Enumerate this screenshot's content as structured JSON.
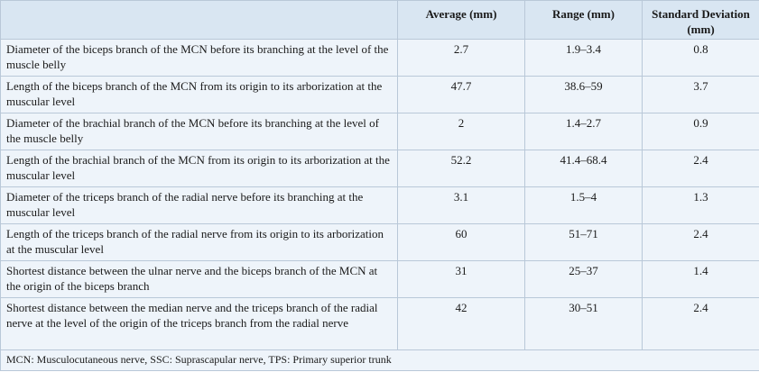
{
  "table": {
    "headers": [
      "",
      "Average (mm)",
      "Range (mm)",
      "Standard Deviation (mm)"
    ],
    "rows": [
      {
        "label": "Diameter of the biceps branch of the MCN before its branching at the level of the muscle belly",
        "average": "2.7",
        "range": "1.9–3.4",
        "sd": "0.8"
      },
      {
        "label": "Length of the biceps branch of the MCN from its origin to its arborization at the muscular level",
        "average": "47.7",
        "range": "38.6–59",
        "sd": "3.7"
      },
      {
        "label": "Diameter of the brachial branch of the MCN before its branching at the level of the muscle belly",
        "average": "2",
        "range": "1.4–2.7",
        "sd": "0.9"
      },
      {
        "label": "Length of the brachial branch of the MCN from its origin to its arborization at the muscular level",
        "average": "52.2",
        "range": "41.4–68.4",
        "sd": "2.4"
      },
      {
        "label": "Diameter of the triceps branch of the radial nerve before its branching at the muscular level",
        "average": "3.1",
        "range": "1.5–4",
        "sd": "1.3"
      },
      {
        "label": "Length of the triceps branch of the radial nerve from its origin to its arborization at the muscular level",
        "average": "60",
        "range": "51–71",
        "sd": "2.4"
      },
      {
        "label": "Shortest distance between the ulnar nerve and the biceps branch of the MCN at the origin of the biceps branch",
        "average": "31",
        "range": "25–37",
        "sd": "1.4"
      },
      {
        "label": "Shortest distance between the median nerve and the triceps branch of the radial nerve at the level of the origin of the triceps branch from the radial nerve",
        "average": "42",
        "range": "30–51",
        "sd": "2.4"
      }
    ],
    "footnote": "MCN: Musculocutaneous nerve, SSC: Suprascapular nerve, TPS: Primary superior trunk"
  }
}
